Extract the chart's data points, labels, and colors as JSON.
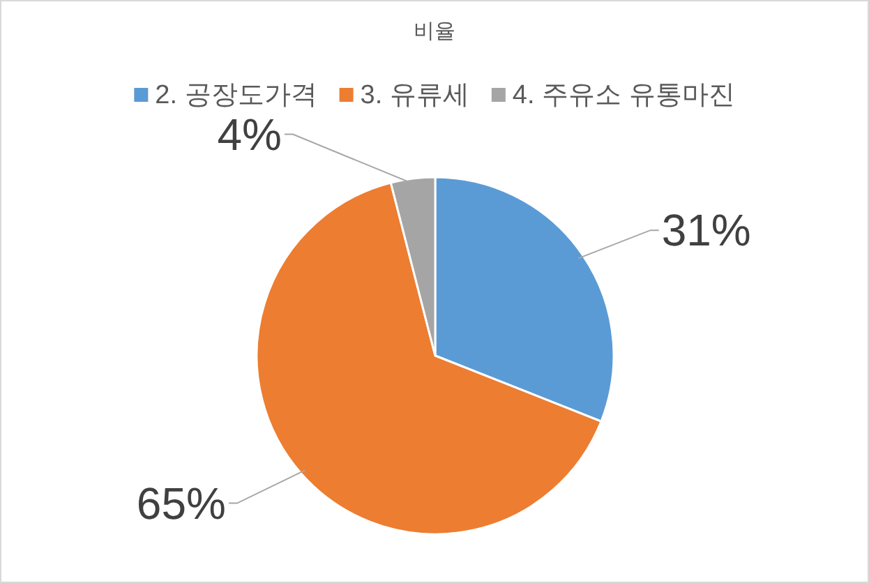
{
  "chart_data": {
    "type": "pie",
    "title": "비율",
    "categories": [
      "2. 공장도가격",
      "3. 유류세",
      "4. 주유소 유통마진"
    ],
    "values": [
      31,
      65,
      4
    ],
    "colors": [
      "#5b9bd5",
      "#ed7d31",
      "#a5a5a5"
    ],
    "value_labels": [
      "31%",
      "65%",
      "4%"
    ],
    "legend": "top"
  }
}
